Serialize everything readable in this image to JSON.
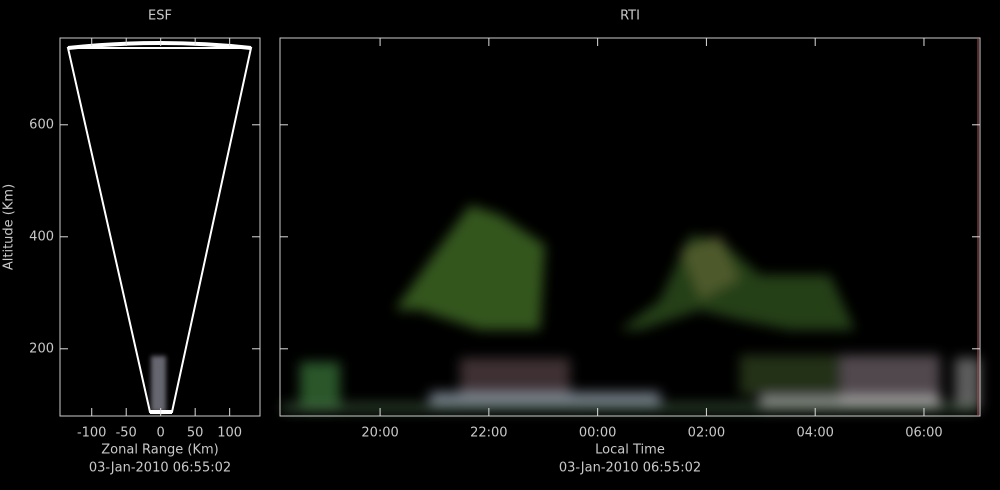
{
  "chart_data": [
    {
      "type": "fan",
      "title": "ESF",
      "x_label": "Zonal Range (Km)",
      "y_label": "Altitude (Km)",
      "timestamp": "03-Jan-2010 06:55:02",
      "xlim": [
        -146,
        144
      ],
      "xticks": [
        -100,
        -50,
        0,
        50,
        100
      ],
      "ylim": [
        80,
        755
      ],
      "yticks": [
        200,
        400,
        600
      ],
      "show_ytick_labels": true
    },
    {
      "type": "rti",
      "title": "RTI",
      "x_label": "Local Time",
      "timestamp": "03-Jan-2010 06:55:02",
      "xlim": [
        18.16,
        31.03
      ],
      "xticks": [
        {
          "value": 20,
          "label": "20:00"
        },
        {
          "value": 22,
          "label": "22:00"
        },
        {
          "value": 24,
          "label": "00:00"
        },
        {
          "value": 26,
          "label": "02:00"
        },
        {
          "value": 28,
          "label": "04:00"
        },
        {
          "value": 30,
          "label": "06:00"
        }
      ],
      "ylim": [
        80,
        755
      ],
      "yticks": [
        200,
        400,
        600
      ],
      "show_ytick_labels": false
    }
  ]
}
